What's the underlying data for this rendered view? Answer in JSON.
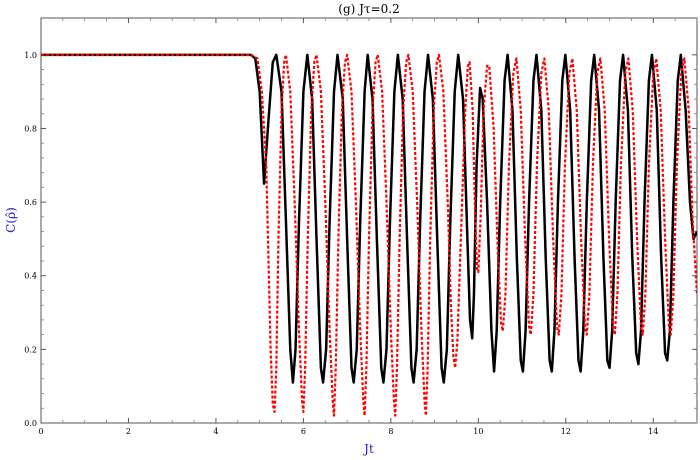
{
  "chart_data": {
    "type": "line",
    "title": "(g) Jτ=0.2",
    "xlabel": "Jt",
    "ylabel": "C(ρ̂)",
    "xlim": [
      0,
      15
    ],
    "ylim": [
      0,
      1.1
    ],
    "x_ticks": [
      "0",
      "2",
      "4",
      "6",
      "8",
      "10",
      "12",
      "14"
    ],
    "y_ticks": [
      "0.0",
      "0.2",
      "0.4",
      "0.6",
      "0.8",
      "1.0"
    ],
    "grid": false,
    "series": [
      {
        "color": "#000000",
        "style": "solid",
        "points": [
          [
            0,
            1.0
          ],
          [
            4.8,
            1.0
          ],
          [
            4.9,
            0.99
          ],
          [
            5.0,
            0.9
          ],
          [
            5.1,
            0.65
          ],
          [
            5.2,
            0.82
          ],
          [
            5.3,
            0.98
          ],
          [
            5.38,
            1.0
          ],
          [
            5.5,
            0.9
          ],
          [
            5.6,
            0.55
          ],
          [
            5.7,
            0.2
          ],
          [
            5.76,
            0.11
          ],
          [
            5.82,
            0.2
          ],
          [
            5.9,
            0.55
          ],
          [
            6.0,
            0.9
          ],
          [
            6.09,
            1.0
          ],
          [
            6.2,
            0.88
          ],
          [
            6.3,
            0.5
          ],
          [
            6.4,
            0.15
          ],
          [
            6.45,
            0.11
          ],
          [
            6.52,
            0.2
          ],
          [
            6.6,
            0.55
          ],
          [
            6.7,
            0.9
          ],
          [
            6.78,
            1.0
          ],
          [
            6.9,
            0.88
          ],
          [
            7.0,
            0.5
          ],
          [
            7.1,
            0.15
          ],
          [
            7.15,
            0.11
          ],
          [
            7.22,
            0.2
          ],
          [
            7.3,
            0.55
          ],
          [
            7.4,
            0.9
          ],
          [
            7.47,
            1.0
          ],
          [
            7.58,
            0.88
          ],
          [
            7.68,
            0.5
          ],
          [
            7.78,
            0.15
          ],
          [
            7.83,
            0.11
          ],
          [
            7.9,
            0.2
          ],
          [
            7.98,
            0.55
          ],
          [
            8.08,
            0.9
          ],
          [
            8.16,
            1.0
          ],
          [
            8.27,
            0.88
          ],
          [
            8.37,
            0.5
          ],
          [
            8.47,
            0.15
          ],
          [
            8.52,
            0.11
          ],
          [
            8.59,
            0.2
          ],
          [
            8.67,
            0.55
          ],
          [
            8.77,
            0.9
          ],
          [
            8.85,
            1.0
          ],
          [
            8.96,
            0.88
          ],
          [
            9.06,
            0.5
          ],
          [
            9.16,
            0.15
          ],
          [
            9.21,
            0.11
          ],
          [
            9.28,
            0.2
          ],
          [
            9.36,
            0.55
          ],
          [
            9.46,
            0.9
          ],
          [
            9.54,
            1.0
          ],
          [
            9.65,
            0.88
          ],
          [
            9.75,
            0.5
          ],
          [
            9.81,
            0.28
          ],
          [
            9.86,
            0.23
          ],
          [
            9.9,
            0.35
          ],
          [
            9.96,
            0.7
          ],
          [
            10.04,
            0.91
          ],
          [
            10.1,
            0.88
          ],
          [
            10.2,
            0.6
          ],
          [
            10.3,
            0.25
          ],
          [
            10.36,
            0.14
          ],
          [
            10.42,
            0.25
          ],
          [
            10.5,
            0.6
          ],
          [
            10.6,
            0.93
          ],
          [
            10.67,
            1.0
          ],
          [
            10.78,
            0.85
          ],
          [
            10.88,
            0.45
          ],
          [
            10.97,
            0.17
          ],
          [
            11.02,
            0.14
          ],
          [
            11.08,
            0.25
          ],
          [
            11.16,
            0.6
          ],
          [
            11.26,
            0.93
          ],
          [
            11.33,
            1.0
          ],
          [
            11.44,
            0.85
          ],
          [
            11.54,
            0.45
          ],
          [
            11.63,
            0.17
          ],
          [
            11.68,
            0.14
          ],
          [
            11.74,
            0.25
          ],
          [
            11.82,
            0.6
          ],
          [
            11.92,
            0.93
          ],
          [
            11.99,
            1.0
          ],
          [
            12.1,
            0.85
          ],
          [
            12.2,
            0.45
          ],
          [
            12.29,
            0.17
          ],
          [
            12.34,
            0.14
          ],
          [
            12.4,
            0.25
          ],
          [
            12.48,
            0.6
          ],
          [
            12.58,
            0.93
          ],
          [
            12.65,
            1.0
          ],
          [
            12.76,
            0.85
          ],
          [
            12.86,
            0.45
          ],
          [
            12.95,
            0.17
          ],
          [
            13.0,
            0.15
          ],
          [
            13.06,
            0.25
          ],
          [
            13.14,
            0.6
          ],
          [
            13.24,
            0.93
          ],
          [
            13.31,
            1.0
          ],
          [
            13.42,
            0.85
          ],
          [
            13.52,
            0.45
          ],
          [
            13.61,
            0.19
          ],
          [
            13.66,
            0.16
          ],
          [
            13.72,
            0.25
          ],
          [
            13.8,
            0.6
          ],
          [
            13.9,
            0.93
          ],
          [
            13.97,
            1.0
          ],
          [
            14.08,
            0.85
          ],
          [
            14.18,
            0.45
          ],
          [
            14.27,
            0.19
          ],
          [
            14.32,
            0.17
          ],
          [
            14.38,
            0.25
          ],
          [
            14.46,
            0.6
          ],
          [
            14.56,
            0.93
          ],
          [
            14.63,
            1.0
          ],
          [
            14.74,
            0.85
          ],
          [
            14.84,
            0.6
          ],
          [
            14.92,
            0.5
          ],
          [
            15.0,
            0.52
          ]
        ]
      },
      {
        "color": "#ff0000",
        "style": "dashed",
        "points": [
          [
            0,
            1.0
          ],
          [
            4.8,
            1.0
          ],
          [
            4.95,
            0.99
          ],
          [
            5.05,
            0.9
          ],
          [
            5.15,
            0.7
          ],
          [
            5.2,
            0.45
          ],
          [
            5.25,
            0.2
          ],
          [
            5.3,
            0.05
          ],
          [
            5.34,
            0.03
          ],
          [
            5.38,
            0.15
          ],
          [
            5.43,
            0.5
          ],
          [
            5.5,
            0.85
          ],
          [
            5.56,
            0.98
          ],
          [
            5.6,
            1.0
          ],
          [
            5.7,
            0.9
          ],
          [
            5.8,
            0.6
          ],
          [
            5.9,
            0.25
          ],
          [
            5.97,
            0.06
          ],
          [
            6.0,
            0.03
          ],
          [
            6.04,
            0.15
          ],
          [
            6.1,
            0.5
          ],
          [
            6.18,
            0.85
          ],
          [
            6.25,
            0.98
          ],
          [
            6.3,
            1.0
          ],
          [
            6.4,
            0.9
          ],
          [
            6.5,
            0.6
          ],
          [
            6.6,
            0.25
          ],
          [
            6.67,
            0.06
          ],
          [
            6.7,
            0.02
          ],
          [
            6.74,
            0.15
          ],
          [
            6.8,
            0.5
          ],
          [
            6.88,
            0.85
          ],
          [
            6.95,
            0.98
          ],
          [
            7.0,
            1.0
          ],
          [
            7.1,
            0.9
          ],
          [
            7.2,
            0.6
          ],
          [
            7.3,
            0.25
          ],
          [
            7.37,
            0.06
          ],
          [
            7.4,
            0.02
          ],
          [
            7.44,
            0.15
          ],
          [
            7.5,
            0.5
          ],
          [
            7.58,
            0.85
          ],
          [
            7.65,
            0.98
          ],
          [
            7.7,
            1.0
          ],
          [
            7.8,
            0.9
          ],
          [
            7.9,
            0.6
          ],
          [
            8.0,
            0.25
          ],
          [
            8.07,
            0.06
          ],
          [
            8.1,
            0.02
          ],
          [
            8.14,
            0.15
          ],
          [
            8.2,
            0.5
          ],
          [
            8.28,
            0.85
          ],
          [
            8.35,
            0.98
          ],
          [
            8.4,
            1.0
          ],
          [
            8.5,
            0.9
          ],
          [
            8.6,
            0.6
          ],
          [
            8.7,
            0.25
          ],
          [
            8.77,
            0.06
          ],
          [
            8.8,
            0.02
          ],
          [
            8.84,
            0.15
          ],
          [
            8.9,
            0.5
          ],
          [
            8.98,
            0.85
          ],
          [
            9.05,
            0.98
          ],
          [
            9.1,
            1.0
          ],
          [
            9.2,
            0.9
          ],
          [
            9.3,
            0.6
          ],
          [
            9.38,
            0.3
          ],
          [
            9.43,
            0.18
          ],
          [
            9.47,
            0.15
          ],
          [
            9.52,
            0.22
          ],
          [
            9.6,
            0.5
          ],
          [
            9.7,
            0.85
          ],
          [
            9.76,
            0.97
          ],
          [
            9.8,
            0.98
          ],
          [
            9.87,
            0.85
          ],
          [
            9.93,
            0.55
          ],
          [
            9.97,
            0.42
          ],
          [
            10.0,
            0.41
          ],
          [
            10.05,
            0.55
          ],
          [
            10.12,
            0.85
          ],
          [
            10.2,
            0.97
          ],
          [
            10.25,
            0.97
          ],
          [
            10.35,
            0.8
          ],
          [
            10.45,
            0.45
          ],
          [
            10.52,
            0.27
          ],
          [
            10.56,
            0.25
          ],
          [
            10.62,
            0.35
          ],
          [
            10.7,
            0.7
          ],
          [
            10.8,
            0.95
          ],
          [
            10.87,
            0.99
          ],
          [
            10.97,
            0.85
          ],
          [
            11.07,
            0.5
          ],
          [
            11.16,
            0.26
          ],
          [
            11.2,
            0.24
          ],
          [
            11.26,
            0.35
          ],
          [
            11.34,
            0.7
          ],
          [
            11.44,
            0.95
          ],
          [
            11.51,
            0.99
          ],
          [
            11.61,
            0.85
          ],
          [
            11.71,
            0.5
          ],
          [
            11.8,
            0.26
          ],
          [
            11.84,
            0.24
          ],
          [
            11.9,
            0.35
          ],
          [
            11.98,
            0.7
          ],
          [
            12.08,
            0.95
          ],
          [
            12.15,
            0.99
          ],
          [
            12.25,
            0.85
          ],
          [
            12.35,
            0.5
          ],
          [
            12.44,
            0.26
          ],
          [
            12.48,
            0.24
          ],
          [
            12.54,
            0.35
          ],
          [
            12.62,
            0.7
          ],
          [
            12.72,
            0.95
          ],
          [
            12.79,
            0.99
          ],
          [
            12.89,
            0.85
          ],
          [
            12.99,
            0.5
          ],
          [
            13.08,
            0.26
          ],
          [
            13.12,
            0.24
          ],
          [
            13.18,
            0.35
          ],
          [
            13.26,
            0.7
          ],
          [
            13.36,
            0.95
          ],
          [
            13.43,
            0.99
          ],
          [
            13.53,
            0.85
          ],
          [
            13.63,
            0.5
          ],
          [
            13.72,
            0.26
          ],
          [
            13.76,
            0.24
          ],
          [
            13.82,
            0.35
          ],
          [
            13.9,
            0.7
          ],
          [
            14.0,
            0.95
          ],
          [
            14.07,
            0.99
          ],
          [
            14.17,
            0.85
          ],
          [
            14.27,
            0.5
          ],
          [
            14.36,
            0.26
          ],
          [
            14.4,
            0.24
          ],
          [
            14.46,
            0.35
          ],
          [
            14.54,
            0.7
          ],
          [
            14.64,
            0.95
          ],
          [
            14.71,
            0.99
          ],
          [
            14.81,
            0.85
          ],
          [
            14.9,
            0.55
          ],
          [
            15.0,
            0.35
          ]
        ]
      }
    ]
  }
}
